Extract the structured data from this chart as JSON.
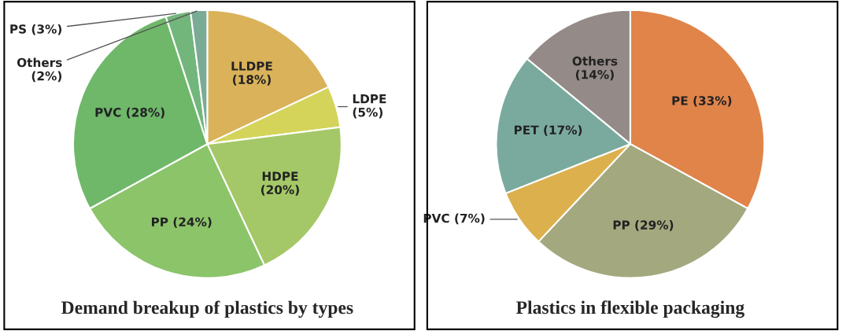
{
  "chart_data": [
    {
      "type": "pie",
      "title": "Demand breakup of plastics by types",
      "categories": [
        "LLDPE",
        "LDPE",
        "HDPE",
        "PP",
        "PVC",
        "PS",
        "Others"
      ],
      "values": [
        18,
        5,
        20,
        24,
        28,
        3,
        2
      ],
      "value_labels": [
        "(18%)",
        "(5%)",
        "(20%)",
        "(24%)",
        "(28%)",
        "(3%)",
        "(2%)"
      ],
      "colors": [
        "#d9b25a",
        "#d4d45a",
        "#a4c867",
        "#8cc46a",
        "#6fb86a",
        "#72b67c",
        "#7aab94"
      ],
      "legend": false
    },
    {
      "type": "pie",
      "title": "Plastics in flexible packaging",
      "categories": [
        "PE",
        "PP",
        "PVC",
        "PET",
        "Others"
      ],
      "values": [
        33,
        29,
        7,
        17,
        14
      ],
      "value_labels": [
        "(33%)",
        "(29%)",
        "(7%)",
        "(17%)",
        "(14%)"
      ],
      "colors": [
        "#e0844a",
        "#a3a87e",
        "#ddb04e",
        "#7aaa9e",
        "#948a88"
      ],
      "legend": false
    }
  ]
}
